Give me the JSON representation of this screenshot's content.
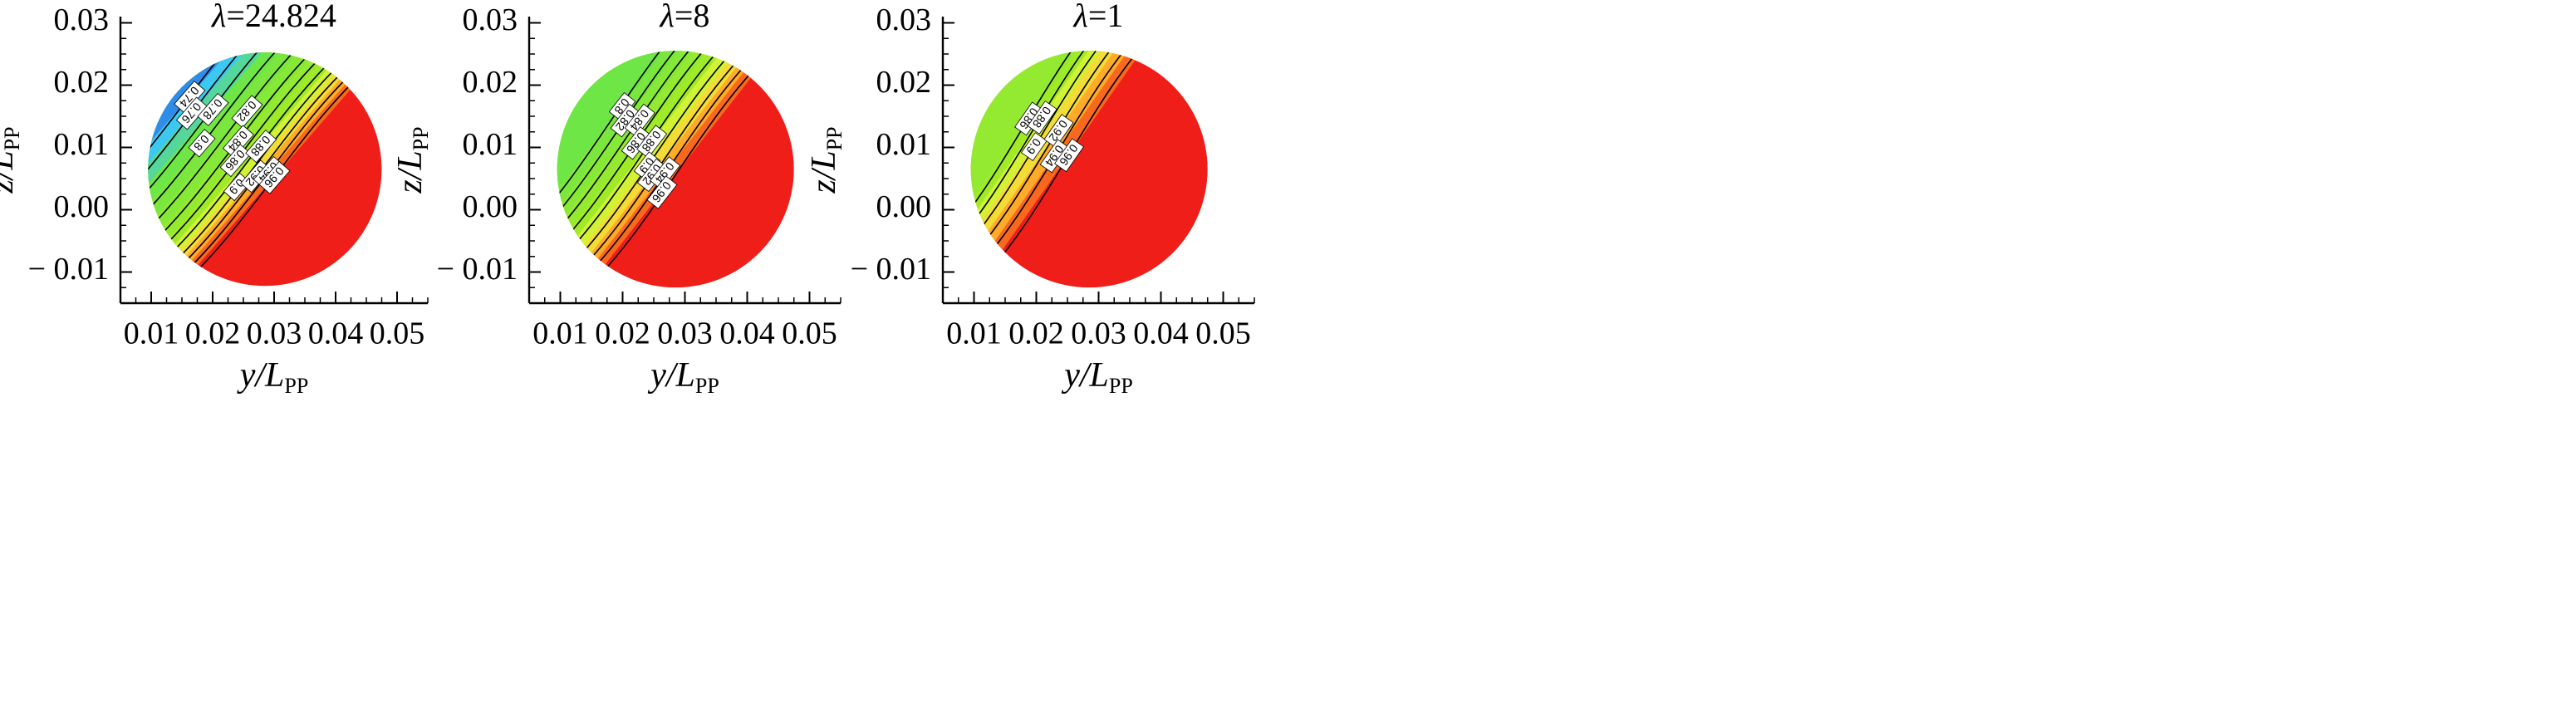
{
  "figure": {
    "subplot_count": 3
  },
  "chart_data": [
    {
      "type": "contour",
      "title_symbol": "λ",
      "title_value": "=24.824",
      "xlabel_var": "y/L",
      "xlabel_sub": "PP",
      "ylabel_var": "z/L",
      "ylabel_sub": "PP",
      "xlim": [
        0.005,
        0.055
      ],
      "ylim": [
        -0.015,
        0.031
      ],
      "x_ticks": [
        0.01,
        0.02,
        0.03,
        0.04,
        0.05
      ],
      "x_tick_labels": [
        "0.01",
        "0.02",
        "0.03",
        "0.04",
        "0.05"
      ],
      "y_ticks": [
        0.03,
        0.02,
        0.01,
        0.0,
        -0.01
      ],
      "y_tick_labels": [
        "0.03",
        "0.02",
        "0.01",
        "0.00",
        "− 0.01"
      ],
      "disk": {
        "center": [
          0.0285,
          0.0065
        ],
        "radius": 0.019
      },
      "front_angle_deg": 41,
      "levels": [
        0.74,
        0.76,
        0.78,
        0.8,
        0.82,
        0.84,
        0.86,
        0.88,
        0.9,
        0.92,
        0.94,
        0.96
      ],
      "level_offsets": [
        0.017,
        0.015,
        0.0128,
        0.0106,
        0.0084,
        0.0063,
        0.0046,
        0.003,
        0.0016,
        0.0004,
        -0.0008,
        -0.002
      ],
      "level_label_pos": [
        0.56,
        0.45,
        0.58,
        0.36,
        0.69,
        0.52,
        0.43,
        0.58,
        0.33,
        0.44,
        0.5,
        0.5
      ],
      "contour_labels": [
        "0.74",
        "0.76",
        "0.78",
        "0.8",
        "0.82",
        "0.84",
        "0.86",
        "0.88",
        "0.9",
        "0.92",
        "0.94",
        "0.96"
      ]
    },
    {
      "type": "contour",
      "title_symbol": "λ",
      "title_value": "=8",
      "xlabel_var": "y/L",
      "xlabel_sub": "PP",
      "ylabel_var": "z/L",
      "ylabel_sub": "PP",
      "xlim": [
        0.005,
        0.055
      ],
      "ylim": [
        -0.015,
        0.031
      ],
      "x_ticks": [
        0.01,
        0.02,
        0.03,
        0.04,
        0.05
      ],
      "x_tick_labels": [
        "0.01",
        "0.02",
        "0.03",
        "0.04",
        "0.05"
      ],
      "y_ticks": [
        0.03,
        0.02,
        0.01,
        0.0,
        -0.01
      ],
      "y_tick_labels": [
        "0.03",
        "0.02",
        "0.01",
        "0.00",
        "− 0.01"
      ],
      "disk": {
        "center": [
          0.0285,
          0.0065
        ],
        "radius": 0.019
      },
      "front_angle_deg": 38,
      "levels": [
        0.8,
        0.82,
        0.84,
        0.86,
        0.88,
        0.9,
        0.92,
        0.94,
        0.96
      ],
      "level_offsets": [
        0.013,
        0.0112,
        0.0094,
        0.0076,
        0.0058,
        0.004,
        0.0024,
        0.001,
        -0.0005
      ],
      "level_label_pos": [
        0.62,
        0.55,
        0.6,
        0.48,
        0.54,
        0.42,
        0.4,
        0.45,
        0.36
      ],
      "contour_labels": [
        "0.8",
        "0.82",
        "0.84",
        "0.86",
        "0.88",
        "0.9",
        "0.92",
        "0.94",
        "0.96"
      ]
    },
    {
      "type": "contour",
      "title_symbol": "λ",
      "title_value": "=1",
      "xlabel_var": "y/L",
      "xlabel_sub": "PP",
      "ylabel_var": "z/L",
      "ylabel_sub": "PP",
      "xlim": [
        0.005,
        0.055
      ],
      "ylim": [
        -0.015,
        0.031
      ],
      "x_ticks": [
        0.01,
        0.02,
        0.03,
        0.04,
        0.05
      ],
      "x_tick_labels": [
        "0.01",
        "0.02",
        "0.03",
        "0.04",
        "0.05"
      ],
      "y_ticks": [
        0.03,
        0.02,
        0.01,
        0.0,
        -0.01
      ],
      "y_tick_labels": [
        "0.03",
        "0.02",
        "0.01",
        "0.00",
        "− 0.01"
      ],
      "disk": {
        "center": [
          0.0285,
          0.0065
        ],
        "radius": 0.019
      },
      "front_angle_deg": 35,
      "levels": [
        0.86,
        0.88,
        0.9,
        0.92,
        0.94,
        0.96
      ],
      "level_offsets": [
        0.0126,
        0.011,
        0.0094,
        0.0076,
        0.0058,
        0.004
      ],
      "level_label_pos": [
        0.55,
        0.6,
        0.42,
        0.58,
        0.45,
        0.5
      ],
      "contour_labels": [
        "0.86",
        "0.88",
        "0.9",
        "0.92",
        "0.94",
        "0.96"
      ]
    }
  ]
}
